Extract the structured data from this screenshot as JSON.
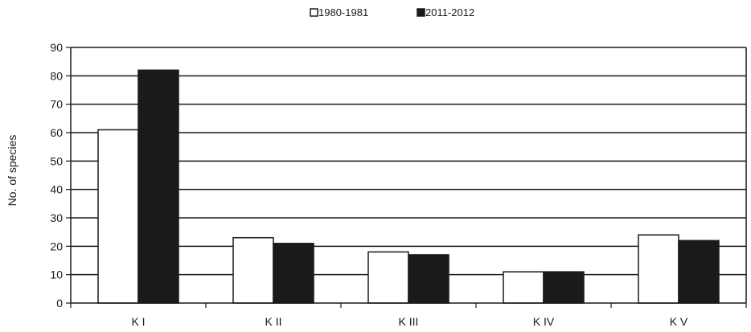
{
  "chart_data": {
    "type": "bar",
    "categories": [
      "K I",
      "K II",
      "K III",
      "K IV",
      "K V"
    ],
    "series": [
      {
        "name": "1980-1981",
        "values": [
          61,
          23,
          18,
          11,
          24
        ],
        "color": "#ffffff"
      },
      {
        "name": "2011-2012",
        "values": [
          82,
          21,
          17,
          11,
          22
        ],
        "color": "#1a1a1a"
      }
    ],
    "title": "",
    "xlabel": "",
    "ylabel": "No. of species",
    "ylim": [
      0,
      90
    ],
    "yticks": [
      0,
      10,
      20,
      30,
      40,
      50,
      60,
      70,
      80,
      90
    ],
    "grid": true,
    "legend_position": "top-center"
  }
}
